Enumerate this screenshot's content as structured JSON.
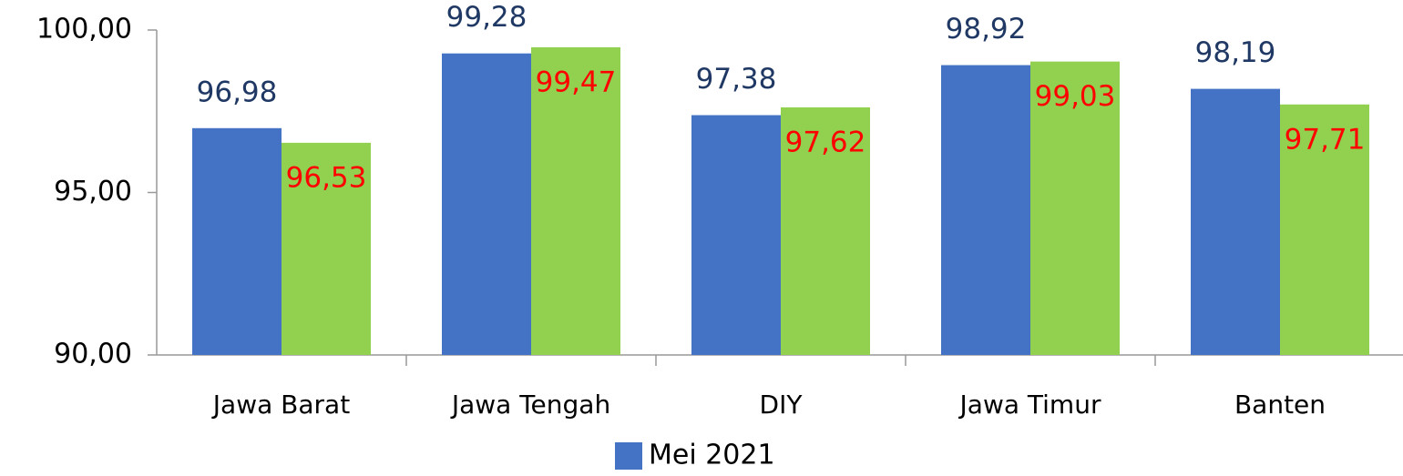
{
  "chart_data": {
    "type": "bar",
    "categories": [
      "Jawa Barat",
      "Jawa Tengah",
      "DIY",
      "Jawa Timur",
      "Banten"
    ],
    "series": [
      {
        "name": "Mei 2021",
        "color": "#4472c4",
        "label_color": "#1f3864",
        "values": [
          96.98,
          99.28,
          97.38,
          98.92,
          98.19
        ],
        "value_labels": [
          "96,98",
          "99,28",
          "97,38",
          "98,92",
          "98,19"
        ]
      },
      {
        "color": "#92d050",
        "label_color": "#ff0000",
        "values": [
          96.53,
          99.47,
          97.62,
          99.03,
          97.71
        ],
        "value_labels": [
          "96,53",
          "99,47",
          "97,62",
          "99,03",
          "97,71"
        ]
      }
    ],
    "ylim": [
      90,
      100
    ],
    "yticks": [
      {
        "value": 90,
        "label": "90,00"
      },
      {
        "value": 95,
        "label": "95,00"
      },
      {
        "value": 100,
        "label": "100,00"
      }
    ],
    "grid": false,
    "legend": "bottom"
  }
}
